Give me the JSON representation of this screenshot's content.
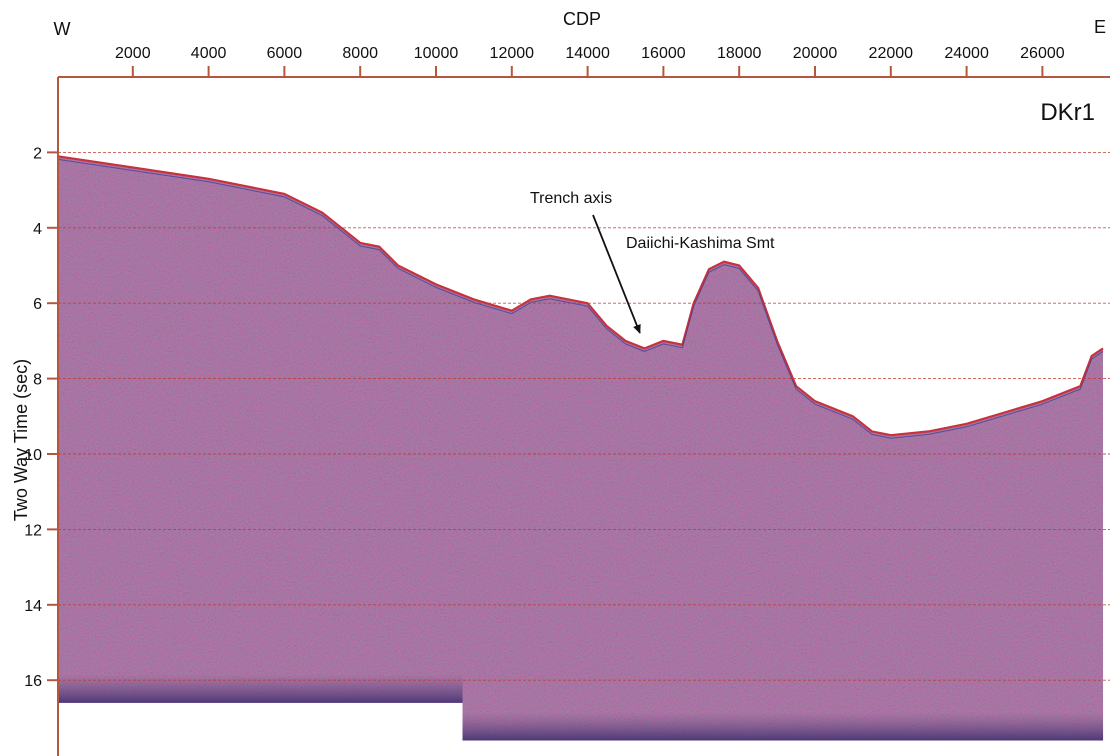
{
  "chart_data": {
    "type": "seismic-section",
    "profile_label": "DKr1",
    "xlabel": "CDP",
    "ylabel": "Two Way  Time (sec)",
    "direction_labels": {
      "left": "W",
      "right": "E"
    },
    "xlim": [
      0,
      27600
    ],
    "ylim": [
      0,
      18
    ],
    "y_inverted": true,
    "x_ticks": [
      2000,
      4000,
      6000,
      8000,
      10000,
      12000,
      14000,
      16000,
      18000,
      20000,
      22000,
      24000,
      26000
    ],
    "y_ticks": [
      2,
      4,
      6,
      8,
      10,
      12,
      14,
      16
    ],
    "y_gridlines": [
      2,
      4,
      6,
      8,
      10,
      12,
      14,
      16
    ],
    "grid": true,
    "colors": {
      "frame": "#b5573f",
      "grid": "#c0392b",
      "fill": "#9f7fa1",
      "positive": "#c8323c",
      "negative": "#2f3d9b"
    },
    "seafloor": {
      "x": [
        0,
        2000,
        4000,
        6000,
        7000,
        8000,
        8500,
        9000,
        10000,
        11000,
        12000,
        12500,
        13000,
        14000,
        14500,
        15000,
        15500,
        16000,
        16500,
        16800,
        17200,
        17600,
        18000,
        18500,
        19000,
        19500,
        20000,
        21000,
        21500,
        22000,
        23000,
        24000,
        25000,
        26000,
        27000,
        27300,
        27600
      ],
      "twt": [
        2.1,
        2.4,
        2.7,
        3.1,
        3.6,
        4.4,
        4.5,
        5.0,
        5.5,
        5.9,
        6.2,
        5.9,
        5.8,
        6.0,
        6.6,
        7.0,
        7.2,
        7.0,
        7.1,
        6.0,
        5.1,
        4.9,
        5.0,
        5.6,
        7.0,
        8.2,
        8.6,
        9.0,
        9.4,
        9.5,
        9.4,
        9.2,
        8.9,
        8.6,
        8.2,
        7.4,
        7.2
      ]
    },
    "record_end_twt": [
      {
        "x_range": [
          0,
          10700
        ],
        "twt": 16.6
      },
      {
        "x_range": [
          10700,
          27600
        ],
        "twt": 17.6
      }
    ],
    "annotations": [
      {
        "text": "Trench axis",
        "text_at": [
          15000,
          3.8
        ],
        "arrow_to": [
          15300,
          7.0
        ]
      },
      {
        "text": "Daiichi-Kashima Smt",
        "text_at": [
          15000,
          4.6
        ]
      }
    ]
  }
}
